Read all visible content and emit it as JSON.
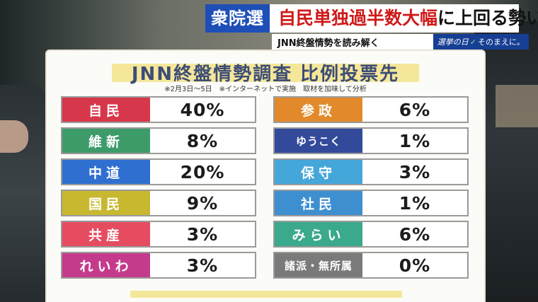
{
  "headline": {
    "badge": "衆院選",
    "text_red": "自民単独過半数大幅",
    "text_rest": "に上回る勢い"
  },
  "subbar": {
    "text": "JNN終盤情勢を読み解く",
    "brand_a": "選挙の日",
    "brand_b": "そのまえに。"
  },
  "board": {
    "title": "JNN終盤情勢調査 比例投票先",
    "note": "※2月3日～5日　※インターネットで実施　取材を加味して分析"
  },
  "colors": {
    "headline_badge": "#1e4fb7",
    "title_band": "#f5e79a",
    "title_text": "#3d4d77"
  },
  "parties": [
    {
      "name": "自民",
      "value": "40%",
      "color": "#d7374b"
    },
    {
      "name": "維新",
      "value": "8%",
      "color": "#3d9b6a"
    },
    {
      "name": "中道",
      "value": "20%",
      "color": "#2f6fd0"
    },
    {
      "name": "国民",
      "value": "9%",
      "color": "#c8b830"
    },
    {
      "name": "共産",
      "value": "3%",
      "color": "#e54c60"
    },
    {
      "name": "れいわ",
      "value": "3%",
      "color": "#c43b8c"
    },
    {
      "name": "参政",
      "value": "6%",
      "color": "#e28a2b"
    },
    {
      "name": "ゆうこく",
      "value": "1%",
      "color": "#334a9b"
    },
    {
      "name": "保守",
      "value": "3%",
      "color": "#45a6d9"
    },
    {
      "name": "社民",
      "value": "1%",
      "color": "#3e8fd0"
    },
    {
      "name": "みらい",
      "value": "6%",
      "color": "#3aa98c"
    },
    {
      "name": "諸派・無所属",
      "value": "0%",
      "color": "#7a7a7a"
    }
  ]
}
